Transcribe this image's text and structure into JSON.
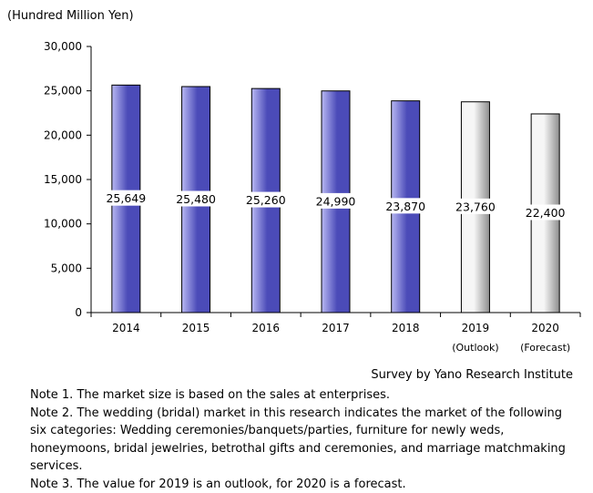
{
  "unit_label": "(Hundred Million Yen)",
  "source": "Survey by Yano Research Institute",
  "notes": [
    "Note 1. The market size is based on the sales at enterprises.",
    "Note 2. The wedding (bridal) market in this research indicates the market of the following six categories: Wedding ceremonies/banquets/parties, furniture for newly weds, honeymoons, bridal jewelries, betrothal gifts and ceremonies, and marriage matchmaking services.",
    "Note 3. The value for 2019 is an outlook, for 2020 is a forecast."
  ],
  "chart_data": {
    "type": "bar",
    "title": "",
    "xlabel": "",
    "ylabel": "(Hundred Million Yen)",
    "categories": [
      "2014",
      "2015",
      "2016",
      "2017",
      "2018",
      "2019",
      "2020"
    ],
    "category_sublabels": [
      "",
      "",
      "",
      "",
      "",
      "(Outlook)",
      "(Forecast)"
    ],
    "values": [
      25649,
      25480,
      25260,
      24990,
      23870,
      23760,
      22400
    ],
    "data_labels": [
      "25,649",
      "25,480",
      "25,260",
      "24,990",
      "23,870",
      "23,760",
      "22,400"
    ],
    "bar_kinds": [
      "actual",
      "actual",
      "actual",
      "actual",
      "actual",
      "outlook",
      "forecast"
    ],
    "ylim": [
      0,
      30000
    ],
    "yticks": [
      0,
      5000,
      10000,
      15000,
      20000,
      25000,
      30000
    ],
    "ytick_labels": [
      "0",
      "5,000",
      "10,000",
      "15,000",
      "20,000",
      "25,000",
      "30,000"
    ],
    "grid": false,
    "legend": "none",
    "colors": {
      "actual_light": "#b8b8f2",
      "actual_dark": "#4b4bb8",
      "projected_light": "#f6f6f6",
      "projected_dark": "#8e8e8e",
      "outline": "#000000"
    }
  }
}
